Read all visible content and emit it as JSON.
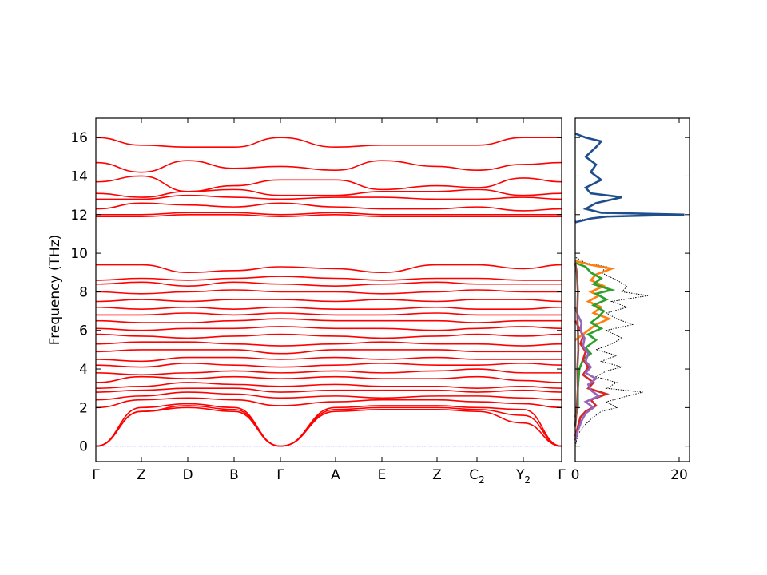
{
  "chart_data": [
    {
      "type": "line",
      "name_role": "phonon-band-structure",
      "title": "",
      "ylabel": "Frequency (THz)",
      "xlabel": "",
      "ylim": [
        -0.8,
        17.0
      ],
      "y_ticks": [
        0,
        2,
        4,
        6,
        8,
        10,
        12,
        14,
        16
      ],
      "grid": false,
      "legend": "none",
      "line_color": "#ff0000",
      "zero_line_color": "#0000ff",
      "kpath": [
        {
          "label": "Γ",
          "sub": ""
        },
        {
          "label": "Z",
          "sub": ""
        },
        {
          "label": "D",
          "sub": ""
        },
        {
          "label": "B",
          "sub": ""
        },
        {
          "label": "Γ",
          "sub": ""
        },
        {
          "label": "A",
          "sub": ""
        },
        {
          "label": "E",
          "sub": ""
        },
        {
          "label": "Z",
          "sub": ""
        },
        {
          "label": "C",
          "sub": "2"
        },
        {
          "label": "Y",
          "sub": "2"
        },
        {
          "label": "Γ",
          "sub": ""
        }
      ],
      "bands_at_kpoints": [
        [
          0,
          1.8,
          2.0,
          1.8,
          0,
          1.8,
          1.9,
          1.9,
          1.8,
          1.2,
          0
        ],
        [
          0,
          1.8,
          2.1,
          1.9,
          0,
          1.9,
          2.0,
          2.0,
          1.9,
          1.6,
          0
        ],
        [
          0,
          2.0,
          2.2,
          2.0,
          0,
          2.0,
          2.1,
          2.1,
          2.0,
          1.9,
          0
        ],
        [
          2.0,
          2.4,
          2.5,
          2.4,
          2.1,
          2.3,
          2.4,
          2.4,
          2.3,
          2.2,
          2.0
        ],
        [
          2.4,
          2.6,
          2.8,
          2.7,
          2.5,
          2.6,
          2.5,
          2.6,
          2.6,
          2.5,
          2.4
        ],
        [
          2.8,
          2.9,
          3.0,
          3.0,
          2.8,
          2.9,
          2.9,
          2.9,
          2.8,
          2.9,
          2.8
        ],
        [
          3.0,
          3.1,
          3.3,
          3.2,
          3.1,
          3.2,
          3.1,
          3.1,
          3.0,
          3.1,
          3.0
        ],
        [
          3.3,
          3.6,
          3.5,
          3.6,
          3.5,
          3.6,
          3.5,
          3.5,
          3.6,
          3.4,
          3.3
        ],
        [
          3.8,
          3.7,
          3.8,
          3.9,
          3.8,
          3.9,
          3.8,
          3.9,
          4.0,
          3.8,
          3.8
        ],
        [
          4.2,
          4.1,
          4.3,
          4.2,
          4.1,
          4.2,
          4.3,
          4.2,
          4.2,
          4.3,
          4.2
        ],
        [
          4.5,
          4.4,
          4.6,
          4.6,
          4.5,
          4.6,
          4.5,
          4.6,
          4.5,
          4.5,
          4.5
        ],
        [
          4.9,
          5.0,
          5.0,
          5.0,
          4.8,
          5.0,
          5.0,
          5.0,
          4.9,
          4.9,
          4.9
        ],
        [
          5.3,
          5.4,
          5.4,
          5.3,
          5.2,
          5.3,
          5.4,
          5.3,
          5.3,
          5.2,
          5.3
        ],
        [
          5.8,
          5.7,
          5.6,
          5.7,
          5.8,
          5.7,
          5.6,
          5.7,
          5.8,
          5.7,
          5.8
        ],
        [
          6.1,
          6.0,
          6.1,
          6.1,
          6.2,
          6.1,
          6.1,
          6.0,
          6.1,
          6.2,
          6.1
        ],
        [
          6.5,
          6.4,
          6.4,
          6.5,
          6.6,
          6.5,
          6.5,
          6.5,
          6.4,
          6.5,
          6.5
        ],
        [
          6.8,
          6.8,
          6.9,
          6.8,
          6.9,
          6.8,
          6.8,
          6.9,
          6.8,
          6.8,
          6.8
        ],
        [
          7.2,
          7.1,
          7.2,
          7.1,
          7.2,
          7.1,
          7.1,
          7.2,
          7.1,
          7.1,
          7.2
        ],
        [
          7.5,
          7.6,
          7.5,
          7.6,
          7.6,
          7.5,
          7.6,
          7.5,
          7.6,
          7.6,
          7.5
        ],
        [
          8.0,
          7.9,
          8.0,
          8.1,
          8.0,
          8.0,
          7.9,
          8.0,
          8.1,
          8.0,
          8.0
        ],
        [
          8.4,
          8.5,
          8.3,
          8.5,
          8.4,
          8.3,
          8.4,
          8.5,
          8.4,
          8.4,
          8.4
        ],
        [
          8.6,
          8.7,
          8.6,
          8.7,
          8.8,
          8.7,
          8.6,
          8.7,
          8.7,
          8.6,
          8.6
        ],
        [
          9.4,
          9.4,
          9.0,
          9.1,
          9.3,
          9.2,
          9.0,
          9.4,
          9.4,
          9.2,
          9.4
        ],
        [
          11.9,
          11.9,
          12.0,
          12.0,
          11.9,
          12.0,
          11.9,
          11.9,
          11.9,
          11.9,
          11.9
        ],
        [
          12.0,
          12.0,
          12.1,
          12.1,
          12.0,
          12.1,
          12.0,
          12.0,
          12.0,
          12.0,
          12.0
        ],
        [
          12.3,
          12.6,
          12.5,
          12.4,
          12.6,
          12.4,
          12.3,
          12.3,
          12.4,
          12.2,
          12.3
        ],
        [
          12.8,
          12.8,
          13.0,
          12.9,
          12.8,
          12.9,
          12.9,
          12.8,
          12.8,
          12.9,
          12.8
        ],
        [
          13.1,
          12.9,
          13.2,
          13.3,
          13.0,
          13.0,
          13.2,
          13.2,
          13.3,
          13.0,
          13.1
        ],
        [
          13.7,
          14.0,
          13.2,
          13.5,
          13.8,
          13.8,
          13.3,
          13.5,
          13.4,
          13.9,
          13.7
        ],
        [
          14.7,
          14.2,
          14.8,
          14.4,
          14.5,
          14.3,
          14.8,
          14.5,
          14.3,
          14.6,
          14.7
        ],
        [
          16.0,
          15.6,
          15.5,
          15.5,
          16.0,
          15.5,
          15.6,
          15.6,
          15.6,
          16.0,
          16.0
        ]
      ]
    },
    {
      "type": "line",
      "name_role": "phonon-dos",
      "title": "",
      "xlabel": "",
      "ylabel": "",
      "xlim": [
        0,
        22
      ],
      "ylim": [
        -0.8,
        17.0
      ],
      "x_ticks": [
        0,
        20
      ],
      "grid": false,
      "legend": "none",
      "series": [
        {
          "role": "total",
          "color": "#000000",
          "style": "dotted",
          "freq": [
            0,
            0.6,
            1.0,
            1.4,
            1.8,
            2.0,
            2.3,
            2.6,
            2.8,
            3.0,
            3.3,
            3.6,
            3.9,
            4.1,
            4.4,
            4.7,
            5.0,
            5.3,
            5.6,
            6.0,
            6.3,
            6.6,
            6.9,
            7.2,
            7.5,
            7.8,
            8.0,
            8.3,
            8.6,
            9.0,
            9.3,
            9.5,
            9.8,
            11.7,
            11.9,
            12.0,
            12.1,
            12.3,
            12.6,
            12.9,
            13.1,
            13.4,
            13.8,
            14.2,
            14.6,
            15.0,
            15.5,
            15.8,
            16.0,
            16.2
          ],
          "dos": [
            0,
            0.5,
            1.5,
            3.0,
            5.0,
            8.0,
            6.0,
            10.0,
            13.0,
            6.0,
            8.0,
            4.0,
            6.0,
            9.0,
            5.0,
            8.0,
            4.0,
            7.0,
            9.0,
            6.0,
            11.0,
            8.0,
            6.0,
            10.0,
            7.0,
            14.0,
            9.0,
            10.0,
            8.0,
            5.0,
            6.0,
            2.0,
            0,
            0,
            6.0,
            21.0,
            5.0,
            2.0,
            4.0,
            9.0,
            3.0,
            2.0,
            5.0,
            3.0,
            4.0,
            2.0,
            4.0,
            5.0,
            2.0,
            0
          ]
        },
        {
          "role": "partial-1",
          "color": "#1f4e8c",
          "style": "solid",
          "freq": [
            11.6,
            11.8,
            11.9,
            12.0,
            12.1,
            12.3,
            12.6,
            12.9,
            13.1,
            13.4,
            13.8,
            14.2,
            14.6,
            15.0,
            15.5,
            15.8,
            16.0,
            16.2
          ],
          "dos": [
            0,
            3.0,
            6.0,
            21.0,
            5.0,
            2.0,
            4.0,
            9.0,
            3.0,
            2.0,
            5.0,
            3.0,
            4.0,
            2.0,
            4.0,
            5.0,
            2.0,
            0
          ]
        },
        {
          "role": "partial-2",
          "color": "#ff7f0e",
          "style": "solid",
          "freq": [
            5.5,
            5.8,
            6.0,
            6.3,
            6.6,
            6.9,
            7.2,
            7.5,
            7.8,
            8.0,
            8.3,
            8.6,
            8.9,
            9.2,
            9.4,
            9.6
          ],
          "dos": [
            0,
            1.5,
            2.5,
            4.0,
            6.5,
            3.5,
            5.0,
            2.5,
            4.5,
            3.0,
            5.5,
            3.0,
            4.0,
            7.0,
            3.0,
            0
          ]
        },
        {
          "role": "partial-3",
          "color": "#2ca02c",
          "style": "solid",
          "freq": [
            1.5,
            2.0,
            3.0,
            4.0,
            4.5,
            4.8,
            5.1,
            5.5,
            5.8,
            6.1,
            6.4,
            6.7,
            7.0,
            7.3,
            7.6,
            7.9,
            8.1,
            8.4,
            8.7,
            9.0,
            9.3,
            9.5
          ],
          "dos": [
            0,
            0.5,
            0.5,
            0.8,
            1.5,
            3.0,
            2.0,
            4.0,
            2.5,
            5.0,
            3.0,
            4.5,
            5.5,
            3.5,
            6.0,
            4.0,
            7.0,
            3.5,
            5.0,
            3.0,
            2.0,
            0
          ]
        },
        {
          "role": "partial-4",
          "color": "#d62728",
          "style": "solid",
          "freq": [
            0.5,
            1.0,
            1.5,
            1.8,
            2.1,
            2.4,
            2.7,
            3.0,
            3.3,
            3.7,
            4.1,
            4.5,
            4.9,
            5.3,
            5.7,
            6.1,
            6.5
          ],
          "dos": [
            0,
            0.5,
            1.0,
            2.0,
            4.0,
            3.0,
            6.0,
            2.5,
            3.5,
            1.5,
            2.5,
            1.5,
            2.0,
            1.0,
            1.5,
            0.8,
            0
          ]
        },
        {
          "role": "partial-5",
          "color": "#9467bd",
          "style": "solid",
          "freq": [
            0.3,
            0.8,
            1.3,
            1.7,
            2.0,
            2.3,
            2.6,
            2.9,
            3.2,
            3.5,
            3.8,
            4.1,
            4.4,
            4.8,
            5.2,
            5.6,
            6.0,
            6.4,
            6.8,
            7.2
          ],
          "dos": [
            0,
            0.5,
            1.2,
            2.0,
            3.5,
            2.0,
            4.5,
            3.0,
            2.5,
            4.0,
            2.0,
            3.0,
            2.0,
            2.5,
            1.5,
            1.8,
            1.0,
            1.2,
            0.5,
            0
          ]
        },
        {
          "role": "partial-6",
          "color": "#8c564b",
          "style": "solid",
          "freq": [
            1.0,
            2.0,
            3.0,
            4.0,
            5.0,
            6.0,
            7.0,
            8.0,
            9.0,
            9.5
          ],
          "dos": [
            0,
            0.3,
            0.5,
            0.4,
            0.6,
            0.5,
            0.4,
            0.5,
            0.3,
            0
          ]
        }
      ]
    }
  ]
}
